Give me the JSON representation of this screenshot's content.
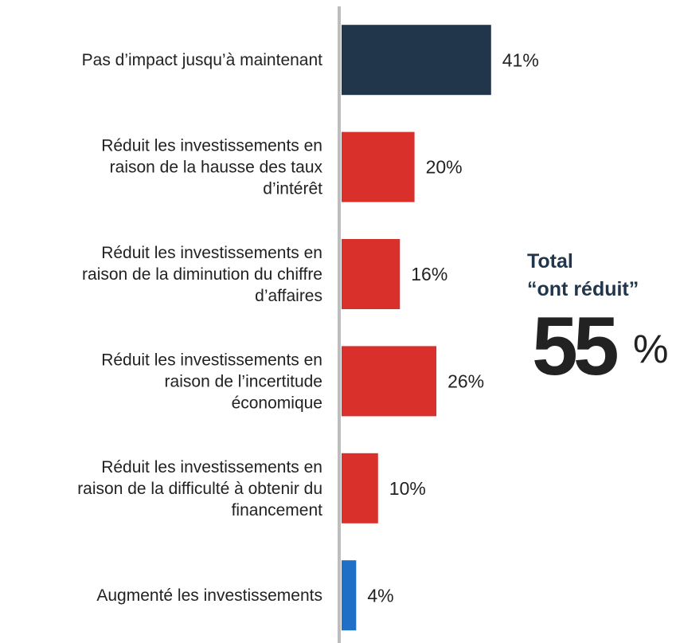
{
  "chart_data": {
    "type": "bar",
    "orientation": "horizontal",
    "categories": [
      [
        "Pas d’impact jusqu’à maintenant"
      ],
      [
        "Réduit les investissements en",
        "raison de la hausse des taux",
        "d’intérêt"
      ],
      [
        "Réduit les investissements en",
        "raison de la diminution du chiffre",
        "d’affaires"
      ],
      [
        "Réduit les investissements en",
        "raison de l’incertitude",
        "économique"
      ],
      [
        "Réduit les investissements en",
        "raison de la difficulté à obtenir du",
        "financement"
      ],
      [
        "Augmenté les investissements"
      ]
    ],
    "values": [
      41,
      20,
      16,
      26,
      10,
      4
    ],
    "value_labels": [
      "41%",
      "20%",
      "16%",
      "26%",
      "10%",
      "4%"
    ],
    "colors": [
      "#22364b",
      "#d9302c",
      "#d9302c",
      "#d9302c",
      "#d9302c",
      "#1f6fc6"
    ],
    "annotation": {
      "lines": [
        "Total",
        "“ont réduit”"
      ],
      "value": 55,
      "unit": "%",
      "color": "#d9302c"
    }
  }
}
